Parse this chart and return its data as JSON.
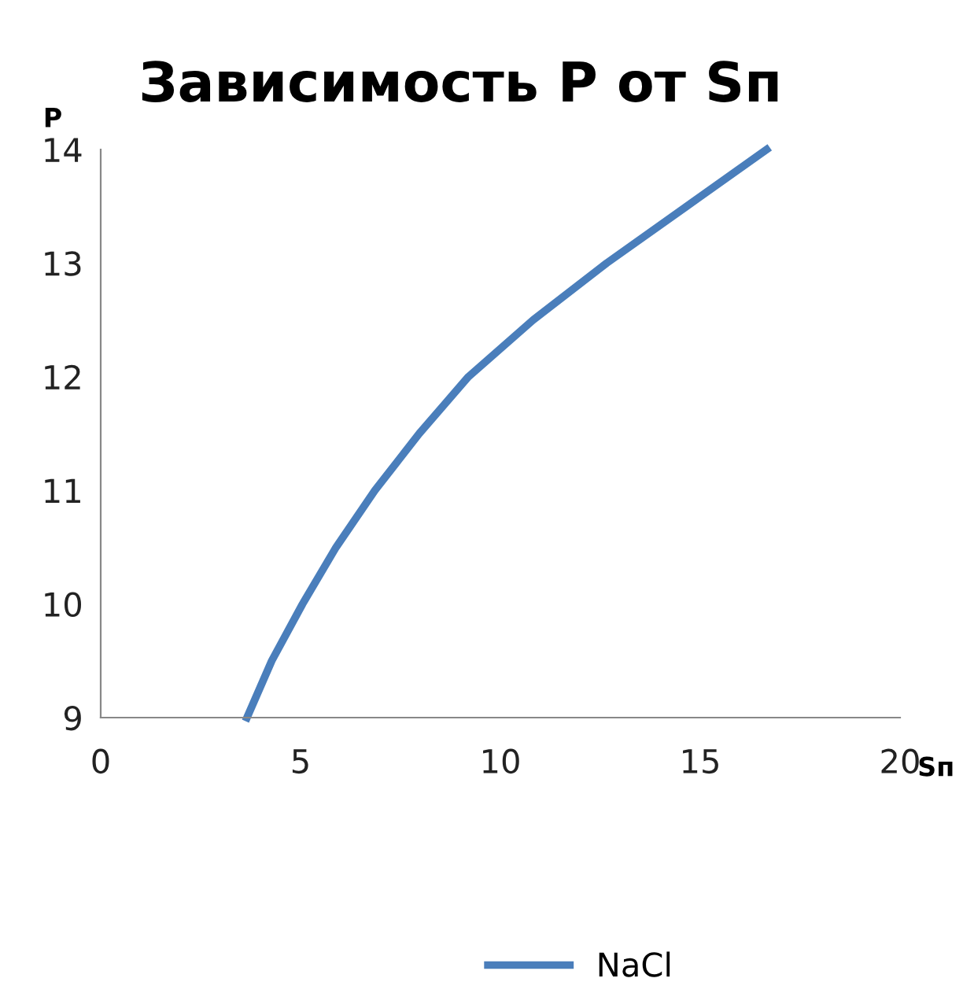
{
  "chart_data": {
    "type": "line",
    "title": "Зависимость P от Sп",
    "xlabel": "Sп",
    "ylabel": "P",
    "xlim": [
      0,
      20
    ],
    "xticks": [
      0,
      5,
      10,
      15,
      20
    ],
    "ylim": [
      9,
      14
    ],
    "yticks": [
      9,
      10,
      11,
      12,
      13,
      14
    ],
    "grid": false,
    "legend": "bottom",
    "marker": "none",
    "line_style": "solid",
    "series": [
      {
        "name": "NaCl",
        "color": "#4a7ebb",
        "x": [
          3.66,
          4.28,
          5.05,
          5.89,
          6.86,
          7.97,
          9.2,
          10.82,
          12.66,
          14.66,
          16.66
        ],
        "values": [
          9,
          9.5,
          10,
          10.5,
          11,
          11.5,
          12,
          12.5,
          13,
          13.5,
          14
        ]
      }
    ]
  }
}
